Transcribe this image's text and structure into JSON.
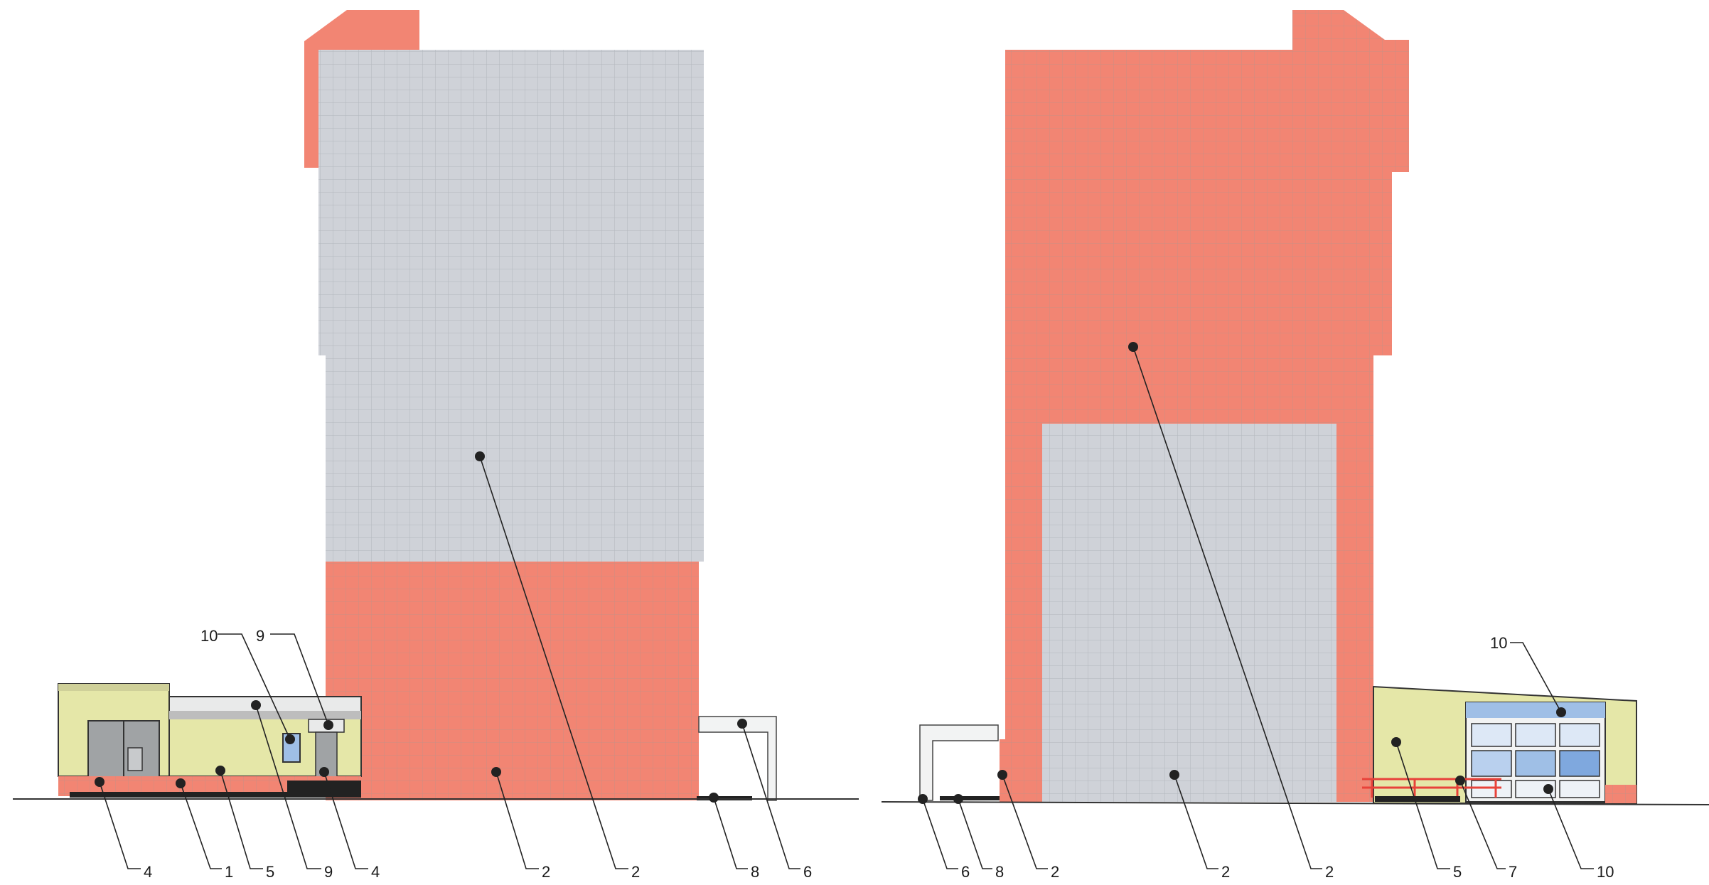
{
  "drawing": {
    "palette": {
      "terracotta": "#F28573",
      "grey_panel": "#CFD2D8",
      "grid_line": "#B9A9A3",
      "cream": "#E5E7A8",
      "door_grey": "#A0A3A5",
      "glass": "#9FBFE6",
      "rail_red": "#E8423A"
    },
    "left_elevation": {
      "callout_labels": [
        "4",
        "1",
        "5",
        "9",
        "4",
        "2",
        "2",
        "8",
        "6"
      ],
      "top_labels": [
        "10",
        "9"
      ]
    },
    "right_elevation": {
      "callout_labels": [
        "6",
        "8",
        "2",
        "2",
        "2",
        "5",
        "7",
        "10"
      ],
      "top_labels": [
        "10"
      ]
    }
  }
}
